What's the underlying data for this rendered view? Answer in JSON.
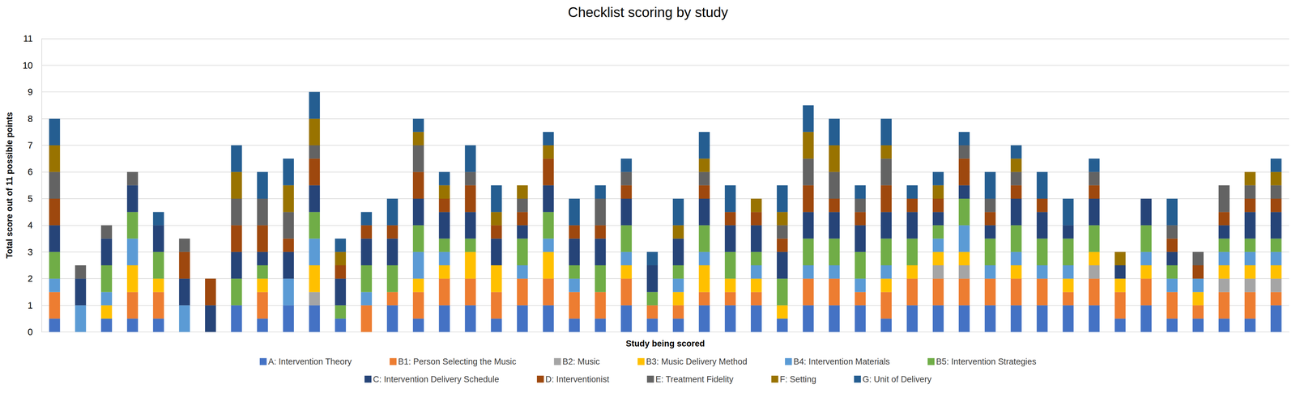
{
  "chart_data": {
    "type": "bar",
    "title": "Checklist scoring by study",
    "x_label": "Study being scored",
    "y_label": "Total score out of 11 possible points",
    "categories": [
      null,
      null,
      null,
      null,
      null,
      null,
      null,
      null,
      null,
      null,
      null,
      null,
      null,
      null,
      null,
      null,
      null,
      null,
      null,
      null,
      null,
      null,
      null,
      null,
      null,
      null,
      null,
      null,
      null,
      null,
      null,
      null,
      null,
      null,
      null,
      null,
      null,
      null,
      null,
      null,
      null,
      null,
      null,
      null,
      null,
      null,
      null,
      null
    ],
    "ylim": [
      0,
      11
    ],
    "yticks": [
      0,
      1,
      2,
      3,
      4,
      5,
      6,
      7,
      8,
      9,
      10,
      11
    ],
    "grid": true,
    "stacked": true,
    "legend": "bottom",
    "tick_labels": "y",
    "series": [
      {
        "name": "A: Intervention Theory",
        "color": "#4472c4",
        "values": [
          0.5,
          0,
          0.5,
          0.5,
          0.5,
          0,
          0,
          1,
          0.5,
          1,
          1,
          0.5,
          0,
          1,
          0.5,
          1,
          1,
          0.5,
          1,
          1,
          0.5,
          0.5,
          1,
          0.5,
          0.5,
          1,
          1,
          1,
          0.5,
          1,
          1,
          1,
          0.5,
          1,
          1,
          1,
          1,
          1,
          1,
          1,
          1,
          0.5,
          1,
          0.5,
          0.5,
          0.5,
          0.5,
          1
        ]
      },
      {
        "name": "B1: Person Selecting the Music",
        "color": "#ed7d31",
        "values": [
          1,
          0,
          0,
          1,
          1,
          0,
          0,
          0,
          1,
          0,
          0,
          0,
          1,
          0.5,
          1,
          1,
          1,
          1,
          1,
          1,
          1,
          1,
          1,
          0.5,
          0.5,
          0.5,
          0.5,
          0.5,
          0,
          1,
          1,
          0.5,
          1,
          1,
          1,
          1,
          1,
          1,
          1,
          0.5,
          1,
          1,
          1,
          1,
          0.5,
          1,
          1,
          0.5
        ]
      },
      {
        "name": "B2: Music",
        "color": "#a5a5a5",
        "values": [
          0,
          0,
          0,
          0,
          0,
          0,
          0,
          0,
          0,
          0,
          0.5,
          0,
          0,
          0,
          0,
          0,
          0,
          0,
          0,
          0,
          0,
          0,
          0,
          0,
          0,
          0,
          0,
          0,
          0,
          0,
          0,
          0,
          0,
          0,
          0.5,
          0.5,
          0,
          0,
          0,
          0,
          0.5,
          0,
          0,
          0,
          0,
          0.5,
          0.5,
          0.5
        ]
      },
      {
        "name": "B3: Music Delivery Method",
        "color": "#ffc000",
        "values": [
          0,
          0,
          0.5,
          1,
          0.5,
          0,
          0,
          0,
          0.5,
          0,
          1,
          0,
          0,
          0,
          0.5,
          0.5,
          1,
          1,
          0,
          1,
          0,
          0,
          0.5,
          0,
          0.5,
          1,
          0.5,
          0.5,
          0.5,
          0,
          0,
          0,
          0.5,
          0.5,
          0.5,
          0.5,
          0,
          0.5,
          0,
          0.5,
          0.5,
          0.5,
          0.5,
          0,
          0.5,
          0.5,
          0.5,
          0.5
        ]
      },
      {
        "name": "B4: Intervention Materials",
        "color": "#5b9bd5",
        "values": [
          0.5,
          1,
          0.5,
          1,
          0,
          1,
          0,
          0,
          0,
          1,
          1,
          0,
          0.5,
          0,
          1,
          0.5,
          0,
          0,
          0.5,
          0.5,
          0.5,
          0,
          0.5,
          0,
          0.5,
          0.5,
          0,
          0.5,
          0,
          0.5,
          0.5,
          0.5,
          0.5,
          0,
          0.5,
          1,
          0.5,
          0.5,
          0.5,
          0.5,
          0,
          0,
          0.5,
          0.5,
          0.5,
          0.5,
          0.5,
          0.5
        ]
      },
      {
        "name": "B5: Intervention Strategies",
        "color": "#70ad47",
        "values": [
          1,
          0,
          1,
          1,
          1,
          0,
          0,
          1,
          0.5,
          0,
          1,
          0.5,
          1,
          1,
          1,
          0.5,
          0.5,
          0,
          1,
          1,
          0.5,
          1,
          1,
          0.5,
          0.5,
          1,
          1,
          0.5,
          1,
          1,
          1,
          1,
          1,
          1,
          0.5,
          1,
          1,
          1,
          1,
          1,
          1,
          0,
          1,
          0.5,
          0,
          0.5,
          0.5,
          0.5
        ]
      },
      {
        "name": "C: Intervention Delivery Schedule",
        "color": "#264478",
        "values": [
          1,
          1,
          1,
          1,
          1,
          1,
          1,
          1,
          0.5,
          1,
          1,
          1,
          1,
          1,
          1,
          1,
          1,
          1,
          0.5,
          1,
          1,
          1,
          1,
          1,
          1,
          1,
          1,
          1,
          1,
          1,
          1,
          1,
          1,
          1,
          0.5,
          0.5,
          0.5,
          1,
          1,
          0.5,
          1,
          0.5,
          1,
          0.5,
          0,
          0.5,
          1,
          1
        ]
      },
      {
        "name": "D: Interventionist",
        "color": "#9e480e",
        "values": [
          1,
          0,
          0,
          0,
          0,
          1,
          1,
          1,
          1,
          0.5,
          1,
          0.5,
          0.5,
          0.5,
          1,
          0.5,
          1,
          0.5,
          0.5,
          1,
          0.5,
          0.5,
          0.5,
          0,
          0,
          0.5,
          0.5,
          0.5,
          0.5,
          1,
          0.5,
          0.5,
          1,
          0.5,
          0.5,
          1,
          0.5,
          0.5,
          0.5,
          0,
          0.5,
          0,
          0,
          0.5,
          0.5,
          0.5,
          0.5,
          0.5
        ]
      },
      {
        "name": "E: Treatment Fidelity",
        "color": "#636363",
        "values": [
          1,
          0.5,
          0.5,
          0.5,
          0,
          0.5,
          0,
          1,
          1,
          1,
          0.5,
          0,
          0,
          0,
          1,
          0,
          0.5,
          0,
          0.5,
          0,
          0,
          1,
          0.5,
          0,
          0,
          0.5,
          0,
          0,
          0.5,
          1,
          1,
          0.5,
          1,
          0,
          0,
          0.5,
          0.5,
          0.5,
          0,
          0,
          0.5,
          0,
          0,
          0.5,
          0.5,
          1,
          0.5,
          0.5
        ]
      },
      {
        "name": "F: Setting",
        "color": "#997300",
        "values": [
          1,
          0,
          0,
          0,
          0,
          0,
          0,
          1,
          0,
          1,
          1,
          0.5,
          0,
          0,
          0.5,
          0.5,
          0,
          0.5,
          0.5,
          0.5,
          0,
          0,
          0,
          0,
          0.5,
          0.5,
          0,
          0.5,
          0.5,
          1,
          1,
          0,
          0.5,
          0,
          0.5,
          0,
          0,
          0.5,
          0,
          0,
          0,
          0.5,
          0,
          0,
          0,
          0,
          0.5,
          0.5
        ]
      },
      {
        "name": "G: Unit of Delivery",
        "color": "#255e91",
        "values": [
          1,
          0,
          0,
          0,
          0.5,
          0,
          0,
          1,
          1,
          1,
          1,
          0.5,
          0.5,
          1,
          0.5,
          0.5,
          1,
          1,
          0,
          0.5,
          1,
          0.5,
          0.5,
          0.5,
          1,
          1,
          1,
          0,
          1,
          1,
          1,
          0.5,
          1,
          0.5,
          0.5,
          0.5,
          1,
          0.5,
          1,
          1,
          0.5,
          0,
          0,
          1,
          0,
          0,
          0,
          0.5
        ]
      }
    ]
  }
}
